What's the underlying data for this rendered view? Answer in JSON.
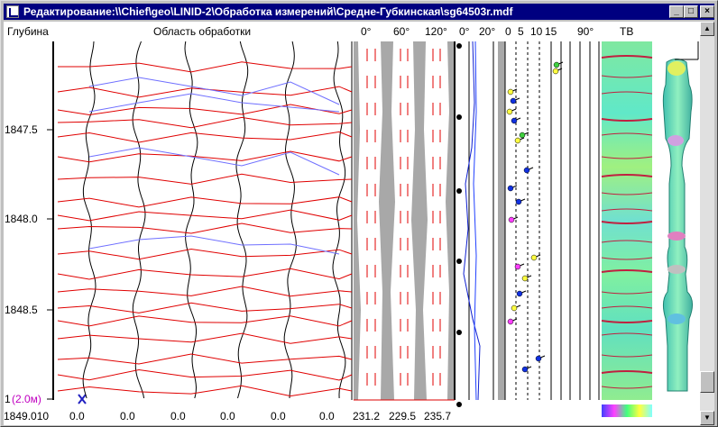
{
  "window": {
    "title": "Редактирование:\\\\Chief\\geo\\LINID-2\\Обработка измерений\\Средне-Губкинская\\sg64503r.mdf",
    "minimize_glyph": "_",
    "maximize_glyph": "□",
    "close_glyph": "×"
  },
  "headers": {
    "depth": "Глубина",
    "processing_area": "Область обработки",
    "angle_0": "0°",
    "angle_60": "60°",
    "angle_120": "120°",
    "angle2_0": "0°",
    "angle2_20": "20°",
    "scale_0": "0",
    "scale_5": "5",
    "scale_10": "10",
    "scale_15": "15",
    "angle_90": "90°",
    "tv": "ТВ"
  },
  "depth_labels": [
    "1847.5",
    "1848.0",
    "1848.5"
  ],
  "scale_note": "(2.0м)",
  "scale_prefix": "1",
  "footer": {
    "depth_value": "1849.010",
    "track_values": [
      "0.0",
      "0.0",
      "0.0",
      "0.0",
      "0.0",
      "0.0"
    ],
    "angles": [
      "231.2",
      "229.5",
      "235.7"
    ]
  },
  "colors": {
    "title_bg": "#000080",
    "blue_line": "#6f6fff",
    "red_line": "#e00000",
    "marker_yellow": "#ffff40",
    "marker_blue": "#1030e0",
    "marker_magenta": "#ff40ff",
    "marker_green": "#40d040"
  }
}
